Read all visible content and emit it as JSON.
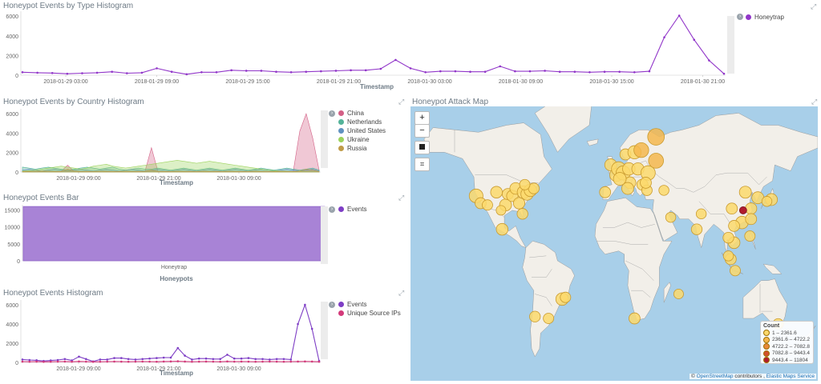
{
  "panels": {
    "type_hist": {
      "title": "Honeypot Events by Type Histogram",
      "xlabel": "Timestamp",
      "legend": [
        {
          "label": "Honeytrap",
          "color": "#9136c9"
        }
      ]
    },
    "country_hist": {
      "title": "Honeypot Events by Country Histogram",
      "xlabel": "Timestamp",
      "legend": [
        {
          "label": "China",
          "color": "#d36086"
        },
        {
          "label": "Netherlands",
          "color": "#54b399"
        },
        {
          "label": "United States",
          "color": "#6092c0"
        },
        {
          "label": "Ukraine",
          "color": "#9cd35c"
        },
        {
          "label": "Russia",
          "color": "#c09c48"
        }
      ]
    },
    "bar": {
      "title": "Honeypot Events Bar",
      "xlabel": "Honeypots",
      "legend": [
        {
          "label": "Events",
          "color": "#7e3ec5"
        }
      ]
    },
    "events_hist": {
      "title": "Honeypot Events Histogram",
      "xlabel": "Timestamp",
      "legend": [
        {
          "label": "Events",
          "color": "#7e3ec5"
        },
        {
          "label": "Unique Source IPs",
          "color": "#d33a7a"
        }
      ]
    },
    "map": {
      "title": "Honeypot Attack Map",
      "zoom_in": "+",
      "zoom_out": "−",
      "legend_title": "Count",
      "legend": [
        {
          "label": "1 – 2361.6",
          "color": "#fcd96c"
        },
        {
          "label": "2361.6 – 4722.2",
          "color": "#f5b74e"
        },
        {
          "label": "4722.2 – 7082.8",
          "color": "#e8893a"
        },
        {
          "label": "7082.8 – 9443.4",
          "color": "#d1502c"
        },
        {
          "label": "9443.4 – 11804",
          "color": "#b01c2e"
        }
      ],
      "attribution_prefix": "©",
      "attribution_osm": "OpenStreetMap",
      "attribution_mid": "contributors ,",
      "attribution_ems": "Elastic Maps Service"
    }
  },
  "chart_data": [
    {
      "id": "type_hist",
      "type": "line",
      "xlabel": "Timestamp",
      "ylabel": "",
      "ylim": [
        0,
        6500
      ],
      "yticks": [
        0,
        2000,
        4000,
        6000
      ],
      "x_tick_labels": [
        "2018-01-29 03:00",
        "2018-01-29 09:00",
        "2018-01-29 15:00",
        "2018-01-29 21:00",
        "2018-01-30 03:00",
        "2018-01-30 09:00",
        "2018-01-30 15:00",
        "2018-01-30 21:00"
      ],
      "series": [
        {
          "name": "Honeytrap",
          "color": "#9136c9",
          "values": [
            300,
            250,
            220,
            150,
            200,
            250,
            350,
            200,
            250,
            700,
            350,
            100,
            300,
            300,
            500,
            450,
            450,
            350,
            300,
            350,
            400,
            450,
            500,
            500,
            650,
            1550,
            700,
            300,
            400,
            400,
            350,
            350,
            900,
            400,
            400,
            450,
            350,
            350,
            300,
            350,
            350,
            300,
            400,
            3850,
            6050,
            3600,
            1500,
            150
          ]
        }
      ]
    },
    {
      "id": "country_hist",
      "type": "area",
      "xlabel": "Timestamp",
      "ylabel": "",
      "ylim": [
        0,
        6500
      ],
      "yticks": [
        0,
        2000,
        4000,
        6000
      ],
      "x_tick_labels": [
        "2018-01-29 09:00",
        "2018-01-29 21:00",
        "2018-01-30 09:00"
      ],
      "series": [
        {
          "name": "China",
          "color": "#d36086",
          "values": [
            100,
            80,
            60,
            50,
            80,
            60,
            80,
            700,
            80,
            60,
            80,
            50,
            60,
            80,
            60,
            60,
            50,
            60,
            80,
            60,
            2500,
            80,
            60,
            60,
            50,
            60,
            80,
            60,
            50,
            60,
            80,
            60,
            60,
            50,
            60,
            80,
            60,
            60,
            50,
            60,
            80,
            60,
            80,
            4200,
            6000,
            3500,
            200
          ]
        },
        {
          "name": "Netherlands",
          "color": "#54b399",
          "values": [
            500,
            400,
            300,
            400,
            500,
            400,
            300,
            200,
            300,
            400,
            500,
            400,
            300,
            400,
            500,
            300,
            200,
            300,
            400,
            300,
            300,
            400,
            300,
            200,
            300,
            400,
            300,
            200,
            300,
            400,
            300,
            200,
            300,
            400,
            300,
            200,
            300,
            400,
            300,
            200,
            300,
            400,
            300,
            200,
            300,
            400,
            200
          ]
        },
        {
          "name": "United States",
          "color": "#6092c0",
          "values": [
            200,
            300,
            200,
            100,
            200,
            300,
            200,
            100,
            200,
            300,
            200,
            100,
            200,
            300,
            200,
            100,
            200,
            300,
            200,
            100,
            200,
            300,
            200,
            100,
            200,
            300,
            200,
            100,
            200,
            300,
            200,
            100,
            200,
            300,
            200,
            100,
            200,
            300,
            200,
            100,
            200,
            300,
            200,
            100,
            200,
            300,
            100
          ]
        },
        {
          "name": "Ukraine",
          "color": "#9cd35c",
          "values": [
            100,
            150,
            200,
            300,
            400,
            500,
            600,
            500,
            400,
            300,
            400,
            600,
            700,
            800,
            600,
            500,
            400,
            500,
            600,
            700,
            800,
            900,
            1000,
            1100,
            1200,
            1100,
            1000,
            900,
            1000,
            1100,
            1000,
            900,
            800,
            700,
            600,
            500,
            400,
            300,
            200,
            150,
            100,
            80,
            60,
            50,
            40,
            30,
            20
          ]
        },
        {
          "name": "Russia",
          "color": "#c09c48",
          "values": [
            50,
            60,
            80,
            100,
            80,
            60,
            50,
            300,
            100,
            60,
            50,
            60,
            80,
            60,
            50,
            60,
            80,
            60,
            50,
            60,
            200,
            60,
            50,
            60,
            80,
            60,
            50,
            60,
            80,
            60,
            50,
            60,
            80,
            60,
            50,
            60,
            80,
            60,
            50,
            60,
            80,
            60,
            50,
            100,
            300,
            200,
            50
          ]
        }
      ]
    },
    {
      "id": "bar",
      "type": "bar",
      "xlabel": "Honeypots",
      "ylabel": "",
      "ylim": [
        0,
        16500
      ],
      "yticks": [
        0,
        5000,
        10000,
        15000
      ],
      "categories": [
        "Honeytrap"
      ],
      "series": [
        {
          "name": "Events",
          "color": "#a883d6",
          "values": [
            16000
          ]
        }
      ]
    },
    {
      "id": "events_hist",
      "type": "line",
      "xlabel": "Timestamp",
      "ylabel": "",
      "ylim": [
        0,
        6500
      ],
      "yticks": [
        0,
        2000,
        4000,
        6000
      ],
      "x_tick_labels": [
        "2018-01-29 09:00",
        "2018-01-29 21:00",
        "2018-01-30 09:00"
      ],
      "series": [
        {
          "name": "Events",
          "color": "#7e3ec5",
          "values": [
            300,
            250,
            220,
            150,
            200,
            250,
            350,
            200,
            600,
            350,
            100,
            300,
            300,
            450,
            450,
            350,
            300,
            350,
            400,
            450,
            500,
            500,
            1500,
            700,
            300,
            400,
            400,
            350,
            350,
            800,
            400,
            400,
            450,
            350,
            350,
            300,
            350,
            350,
            300,
            4000,
            6000,
            3500,
            150
          ]
        },
        {
          "name": "Unique Source IPs",
          "color": "#d33a7a",
          "values": [
            80,
            70,
            80,
            60,
            70,
            80,
            90,
            70,
            100,
            80,
            60,
            70,
            80,
            90,
            80,
            70,
            80,
            90,
            80,
            70,
            90,
            100,
            120,
            90,
            70,
            80,
            90,
            80,
            70,
            100,
            80,
            90,
            80,
            70,
            80,
            90,
            80,
            70,
            80,
            90,
            100,
            90,
            70
          ]
        }
      ]
    }
  ],
  "map_points": [
    {
      "lon": -122,
      "lat": 38,
      "count": 2000
    },
    {
      "lon": -118,
      "lat": 34,
      "count": 1000
    },
    {
      "lon": -112,
      "lat": 33,
      "count": 800
    },
    {
      "lon": -104,
      "lat": 40,
      "count": 1200
    },
    {
      "lon": -96,
      "lat": 33,
      "count": 1300
    },
    {
      "lon": -94,
      "lat": 39,
      "count": 1000
    },
    {
      "lon": -90,
      "lat": 38,
      "count": 1100
    },
    {
      "lon": -87,
      "lat": 42,
      "count": 1200
    },
    {
      "lon": -84,
      "lat": 34,
      "count": 1100
    },
    {
      "lon": -81,
      "lat": 28,
      "count": 900
    },
    {
      "lon": -80,
      "lat": 40,
      "count": 1600
    },
    {
      "lon": -77,
      "lat": 39,
      "count": 1400
    },
    {
      "lon": -74,
      "lat": 41,
      "count": 1500
    },
    {
      "lon": -71,
      "lat": 42,
      "count": 900
    },
    {
      "lon": -79,
      "lat": 44,
      "count": 800
    },
    {
      "lon": -100,
      "lat": 30,
      "count": 600
    },
    {
      "lon": -46,
      "lat": -23,
      "count": 1500
    },
    {
      "lon": -43,
      "lat": -22,
      "count": 800
    },
    {
      "lon": -70,
      "lat": -33,
      "count": 900
    },
    {
      "lon": -99,
      "lat": 19,
      "count": 1200
    },
    {
      "lon": -58,
      "lat": -34,
      "count": 800
    },
    {
      "lon": -3,
      "lat": 54,
      "count": 1300
    },
    {
      "lon": 2,
      "lat": 49,
      "count": 1800
    },
    {
      "lon": 4,
      "lat": 52,
      "count": 2300
    },
    {
      "lon": 8,
      "lat": 50,
      "count": 2200
    },
    {
      "lon": 13,
      "lat": 52,
      "count": 1500
    },
    {
      "lon": 10,
      "lat": 59,
      "count": 1000
    },
    {
      "lon": 18,
      "lat": 60,
      "count": 1800
    },
    {
      "lon": 24,
      "lat": 61,
      "count": 2500
    },
    {
      "lon": 21,
      "lat": 52,
      "count": 1400
    },
    {
      "lon": 30,
      "lat": 50,
      "count": 2300
    },
    {
      "lon": 37,
      "lat": 56,
      "count": 2600
    },
    {
      "lon": 14,
      "lat": 45,
      "count": 1200
    },
    {
      "lon": 25,
      "lat": 44,
      "count": 1000
    },
    {
      "lon": -8,
      "lat": 40,
      "count": 1000
    },
    {
      "lon": 29,
      "lat": 41,
      "count": 800
    },
    {
      "lon": 44,
      "lat": 41,
      "count": 700
    },
    {
      "lon": 5,
      "lat": 47,
      "count": 1600
    },
    {
      "lon": 12,
      "lat": 42,
      "count": 1300
    },
    {
      "lon": 28,
      "lat": 45,
      "count": 1000
    },
    {
      "lon": 50,
      "lat": 26,
      "count": 700
    },
    {
      "lon": 37,
      "lat": 67,
      "count": 3500
    },
    {
      "lon": 116,
      "lat": 40,
      "count": 1300
    },
    {
      "lon": 121,
      "lat": 31,
      "count": 1100
    },
    {
      "lon": 114,
      "lat": 30,
      "count": 11804
    },
    {
      "lon": 113,
      "lat": 23,
      "count": 1500
    },
    {
      "lon": 104,
      "lat": 31,
      "count": 1000
    },
    {
      "lon": 127,
      "lat": 37,
      "count": 1300
    },
    {
      "lon": 139,
      "lat": 36,
      "count": 1300
    },
    {
      "lon": 135,
      "lat": 35,
      "count": 700
    },
    {
      "lon": 121,
      "lat": 25,
      "count": 1000
    },
    {
      "lon": 106,
      "lat": 11,
      "count": 1200
    },
    {
      "lon": 101,
      "lat": 14,
      "count": 900
    },
    {
      "lon": 106,
      "lat": 21,
      "count": 1000
    },
    {
      "lon": 120,
      "lat": 15,
      "count": 800
    },
    {
      "lon": 103,
      "lat": 1,
      "count": 1000
    },
    {
      "lon": 107,
      "lat": -6,
      "count": 800
    },
    {
      "lon": 101,
      "lat": 3,
      "count": 700
    },
    {
      "lon": 77,
      "lat": 28,
      "count": 700
    },
    {
      "lon": 73,
      "lat": 19,
      "count": 900
    },
    {
      "lon": 145,
      "lat": -37,
      "count": 800
    },
    {
      "lon": 18,
      "lat": -34,
      "count": 1000
    },
    {
      "lon": 57,
      "lat": -20,
      "count": 600
    }
  ]
}
